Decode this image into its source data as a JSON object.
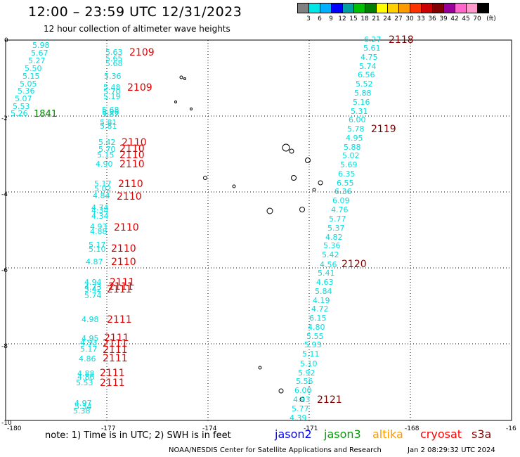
{
  "header": {
    "title": "12:00 – 23:59 UTC 12/31/2023",
    "subtitle": "12 hour collection of altimeter wave heights"
  },
  "legend": {
    "colors": [
      "#808080",
      "#00e5e5",
      "#00b0ff",
      "#0000ff",
      "#00a0a0",
      "#00c000",
      "#008000",
      "#ffff00",
      "#ffd000",
      "#ff9900",
      "#ff3300",
      "#cc0000",
      "#800000",
      "#990099",
      "#ff66cc",
      "#ff99cc",
      "#000000"
    ],
    "labels": [
      "3",
      "6",
      "9",
      "12",
      "15",
      "18",
      "21",
      "24",
      "27",
      "30",
      "33",
      "36",
      "39",
      "42",
      "45",
      "70",
      "(ft)"
    ]
  },
  "axes": {
    "x_ticks": [
      "-180",
      "-177",
      "-174",
      "-171",
      "-168",
      "-16"
    ],
    "y_ticks": [
      "0",
      "-2",
      "-4",
      "-6",
      "-8",
      "-10"
    ]
  },
  "colors": {
    "cyan": "#00dede",
    "red": "#e00000",
    "darkred": "#800000",
    "green": "#008000"
  },
  "tracks": {
    "track_a_values": [
      "5.98",
      "5.67",
      "5.27",
      "5.50",
      "5.15",
      "5.05",
      "5.36",
      "5.07",
      "5.53",
      "5.26"
    ],
    "track_a_time": "1841",
    "track_b_values": [
      "5.63",
      "5.65",
      "5.68",
      "5.36",
      "5.48",
      "5.70",
      "5.19",
      "5.68",
      "5.96",
      "5.87",
      "5.81",
      "5.81",
      "5.42",
      "5.70",
      "5.15",
      "4.90",
      "5.17",
      "5.02",
      "4.84",
      "4.74",
      "4.34",
      "4.34",
      "4.93",
      "4.88",
      "5.17",
      "5.10",
      "4.87",
      "4.94",
      "4.73",
      "5.42",
      "5.74",
      "4.98",
      "4.95",
      "4.93",
      "5.17",
      "4.86",
      "4.88",
      "4.86",
      "5.53",
      "4.97",
      "5.34",
      "5.38"
    ],
    "track_b_times": [
      "2109",
      "2109",
      "2110",
      "2110",
      "2110",
      "2110",
      "2110",
      "2110",
      "2110",
      "2110",
      "2110",
      "2111",
      "2111",
      "2111",
      "2111",
      "2111",
      "2111",
      "2111",
      "2111",
      "2111",
      "2111"
    ],
    "track_c_values": [
      "6.27",
      "5.61",
      "4.75",
      "5.74",
      "6.56",
      "5.52",
      "5.88",
      "5.16",
      "5.31",
      "6.00",
      "5.78",
      "4.95",
      "5.88",
      "5.02",
      "5.69",
      "6.35",
      "6.55",
      "6.36",
      "6.09",
      "4.76",
      "5.77",
      "5.37",
      "4.82",
      "5.36",
      "5.42",
      "4.56",
      "5.41",
      "4.63",
      "5.84",
      "4.19",
      "4.72",
      "6.15",
      "4.80",
      "5.55",
      "5.93",
      "5.11",
      "5.10",
      "5.92",
      "5.56",
      "6.00",
      "4.93",
      "5.77",
      "4.39"
    ],
    "track_c_times": [
      "2118",
      "2119",
      "2120",
      "2121"
    ]
  },
  "footer": {
    "note": "note:  1) Time is in UTC; 2) SWH is in feet",
    "satellites": [
      {
        "name": "jason2",
        "color": "#0000ff"
      },
      {
        "name": "jason3",
        "color": "#00a000"
      },
      {
        "name": "altika",
        "color": "#ff9900"
      },
      {
        "name": "cryosat",
        "color": "#ff0000"
      },
      {
        "name": "s3a",
        "color": "#800000"
      }
    ],
    "credit": "NOAA/NESDIS Center for Satellite Applications and Research",
    "stamp": "Jan  2 08:29:32 UTC 2024"
  }
}
